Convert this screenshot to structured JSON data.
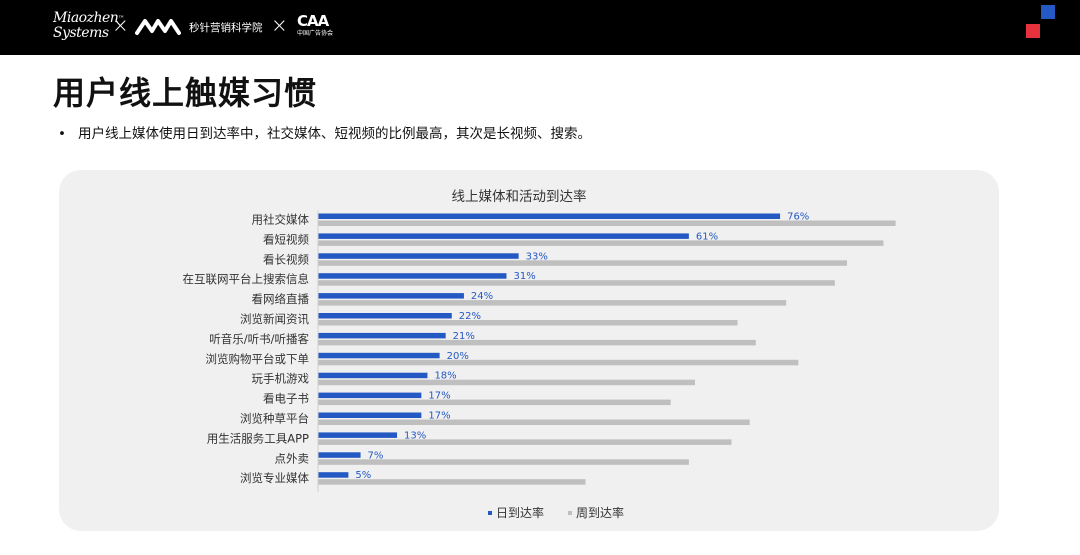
{
  "header": {
    "brand_primary": "Miaozhen Systems",
    "brand_primary_line1": "Miaozhen",
    "brand_primary_line2": "Systems",
    "brand_tm": "™",
    "separator": "×",
    "brand_secondary_label": "秒针营销科学院",
    "brand_tertiary": "CAA",
    "brand_tertiary_sub": "中国广告协会"
  },
  "page": {
    "title": "用户线上触媒习惯",
    "bullet_marker": "•",
    "bullet_text": "用户线上媒体使用日到达率中，社交媒体、短视频的比例最高，其次是长视频、搜索。"
  },
  "colors": {
    "series_daily": "#2459c4",
    "series_weekly": "#bfbfbf",
    "accent_blue": "#2459c4",
    "accent_red": "#e6323c",
    "card_bg": "#f0f0f0"
  },
  "chart_data": {
    "type": "bar",
    "orientation": "horizontal",
    "title": "线上媒体和活动到达率",
    "categories": [
      "用社交媒体",
      "看短视频",
      "看长视频",
      "在互联网平台上搜索信息",
      "看网络直播",
      "浏览新闻资讯",
      "听音乐/听书/听播客",
      "浏览购物平台或下单",
      "玩手机游戏",
      "看电子书",
      "浏览种草平台",
      "用生活服务工具APP",
      "点外卖",
      "浏览专业媒体"
    ],
    "series": [
      {
        "name": "日到达率",
        "values": [
          76,
          61,
          33,
          31,
          24,
          22,
          21,
          20,
          18,
          17,
          17,
          13,
          7,
          5
        ],
        "labels": [
          "76%",
          "61%",
          "33%",
          "31%",
          "24%",
          "22%",
          "21%",
          "20%",
          "18%",
          "17%",
          "17%",
          "13%",
          "7%",
          "5%"
        ]
      },
      {
        "name": "周到达率",
        "values": [
          95,
          93,
          87,
          85,
          77,
          69,
          72,
          79,
          62,
          58,
          71,
          68,
          61,
          44
        ]
      }
    ],
    "xlim": [
      0,
      100
    ],
    "grid": false,
    "legend_position": "bottom-center"
  }
}
